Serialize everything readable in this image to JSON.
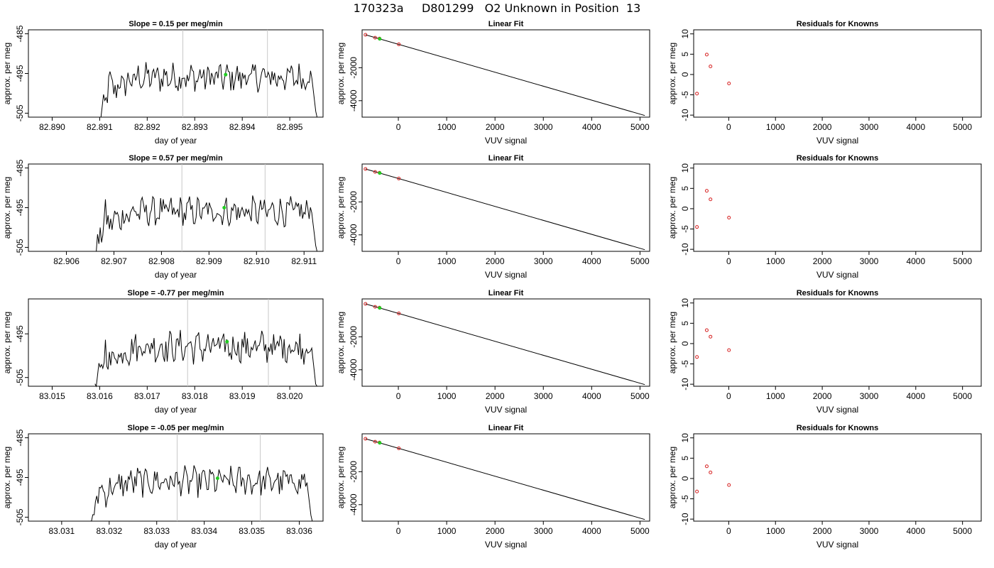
{
  "figure_title": "170323a     D801299   O2 Unknown in Position  13",
  "chart_data": [
    {
      "type": "line",
      "title": "Slope =  0.15  per meg/min",
      "xlabel": "day of year",
      "ylabel": "approx. per meg",
      "xlim": [
        82.8895,
        82.8957
      ],
      "ylim": [
        -506,
        -484
      ],
      "xticks": [
        "82.890",
        "82.891",
        "82.892",
        "82.893",
        "82.894",
        "82.895"
      ],
      "yticks": [
        "-485",
        "-495",
        "-505"
      ],
      "trace": {
        "x_start": 82.891,
        "x_end": 82.8956
      },
      "vlines": [
        82.89275,
        82.89453
      ],
      "green_marker": {
        "x": 82.89365,
        "y": -495.3
      }
    },
    {
      "type": "line",
      "title": "Linear Fit",
      "xlabel": "VUV signal",
      "ylabel": "approx. per meg",
      "xlim": [
        -750,
        5200
      ],
      "ylim": [
        -5000,
        300
      ],
      "xticks": [
        "0",
        "1000",
        "2000",
        "3000",
        "4000",
        "5000"
      ],
      "yticks": [
        "-2000",
        "-4000"
      ],
      "fit_line": {
        "x": [
          -680,
          5100
        ],
        "y": [
          0,
          -4900
        ]
      },
      "points_red": [
        {
          "x": -680,
          "y": 0
        },
        {
          "x": -480,
          "y": -180
        },
        {
          "x": -390,
          "y": -230
        },
        {
          "x": 10,
          "y": -580
        }
      ],
      "point_green": {
        "x": -385,
        "y": -250
      }
    },
    {
      "type": "scatter",
      "title": "Residuals for Knowns",
      "xlabel": "VUV signal",
      "ylabel": "approx. per meg",
      "xlim": [
        -750,
        5400
      ],
      "ylim": [
        -10.5,
        11
      ],
      "xticks": [
        "0",
        "1000",
        "2000",
        "3000",
        "4000",
        "5000"
      ],
      "yticks": [
        "10",
        "5",
        "0",
        "-5",
        "-10"
      ],
      "points": [
        {
          "x": -680,
          "y": -4.7
        },
        {
          "x": -470,
          "y": 4.9
        },
        {
          "x": -390,
          "y": 2.0
        },
        {
          "x": 5,
          "y": -2.2
        }
      ]
    },
    {
      "type": "line",
      "title": "Slope =  0.57  per meg/min",
      "xlabel": "day of year",
      "ylabel": "approx. per meg",
      "xlim": [
        82.9052,
        82.9114
      ],
      "ylim": [
        -506,
        -484
      ],
      "xticks": [
        "82.906",
        "82.907",
        "82.908",
        "82.909",
        "82.910",
        "82.911"
      ],
      "yticks": [
        "-485",
        "-495",
        "-505"
      ],
      "trace": {
        "x_start": 82.9066,
        "x_end": 82.9113
      },
      "vlines": [
        82.90843,
        82.91018
      ],
      "green_marker": {
        "x": 82.90932,
        "y": -495.0
      }
    },
    {
      "type": "line",
      "title": "Linear Fit",
      "xlabel": "VUV signal",
      "ylabel": "approx. per meg",
      "xlim": [
        -750,
        5200
      ],
      "ylim": [
        -5000,
        300
      ],
      "xticks": [
        "0",
        "1000",
        "2000",
        "3000",
        "4000",
        "5000"
      ],
      "yticks": [
        "-2000",
        "-4000"
      ],
      "fit_line": {
        "x": [
          -680,
          5100
        ],
        "y": [
          0,
          -4900
        ]
      },
      "points_red": [
        {
          "x": -680,
          "y": 0
        },
        {
          "x": -480,
          "y": -180
        },
        {
          "x": -390,
          "y": -230
        },
        {
          "x": 10,
          "y": -580
        }
      ],
      "point_green": {
        "x": -385,
        "y": -250
      }
    },
    {
      "type": "scatter",
      "title": "Residuals for Knowns",
      "xlabel": "VUV signal",
      "ylabel": "approx. per meg",
      "xlim": [
        -750,
        5400
      ],
      "ylim": [
        -10.5,
        11
      ],
      "xticks": [
        "0",
        "1000",
        "2000",
        "3000",
        "4000",
        "5000"
      ],
      "yticks": [
        "10",
        "5",
        "0",
        "-5",
        "-10"
      ],
      "points": [
        {
          "x": -680,
          "y": -4.5
        },
        {
          "x": -470,
          "y": 4.4
        },
        {
          "x": -390,
          "y": 2.3
        },
        {
          "x": 5,
          "y": -2.2
        }
      ]
    },
    {
      "type": "line",
      "title": "Slope =  -0.77  per meg/min",
      "xlabel": "day of year",
      "ylabel": "approx. per meg",
      "xlim": [
        83.0145,
        83.0207
      ],
      "ylim": [
        -507,
        -487
      ],
      "xticks": [
        "83.015",
        "83.016",
        "83.017",
        "83.018",
        "83.019",
        "83.020"
      ],
      "yticks": [
        "-495",
        "-505"
      ],
      "trace": {
        "x_start": 83.0159,
        "x_end": 83.0206
      },
      "vlines": [
        83.01785,
        83.01955
      ],
      "green_marker": {
        "x": 83.01868,
        "y": -496.8
      }
    },
    {
      "type": "line",
      "title": "Linear Fit",
      "xlabel": "VUV signal",
      "ylabel": "approx. per meg",
      "xlim": [
        -750,
        5200
      ],
      "ylim": [
        -5000,
        300
      ],
      "xticks": [
        "0",
        "1000",
        "2000",
        "3000",
        "4000",
        "5000"
      ],
      "yticks": [
        "-2000",
        "-4000"
      ],
      "fit_line": {
        "x": [
          -680,
          5100
        ],
        "y": [
          0,
          -4900
        ]
      },
      "points_red": [
        {
          "x": -680,
          "y": 0
        },
        {
          "x": -480,
          "y": -180
        },
        {
          "x": -390,
          "y": -230
        },
        {
          "x": 10,
          "y": -580
        }
      ],
      "point_green": {
        "x": -385,
        "y": -250
      }
    },
    {
      "type": "scatter",
      "title": "Residuals for Knowns",
      "xlabel": "VUV signal",
      "ylabel": "approx. per meg",
      "xlim": [
        -750,
        5400
      ],
      "ylim": [
        -10.5,
        11
      ],
      "xticks": [
        "0",
        "1000",
        "2000",
        "3000",
        "4000",
        "5000"
      ],
      "yticks": [
        "10",
        "5",
        "0",
        "-5",
        "-10"
      ],
      "points": [
        {
          "x": -680,
          "y": -3.3
        },
        {
          "x": -470,
          "y": 3.3
        },
        {
          "x": -390,
          "y": 1.7
        },
        {
          "x": 5,
          "y": -1.6
        }
      ]
    },
    {
      "type": "line",
      "title": "Slope =  -0.05  per meg/min",
      "xlabel": "day of year",
      "ylabel": "approx. per meg",
      "xlim": [
        83.0303,
        83.0365
      ],
      "ylim": [
        -506,
        -484
      ],
      "xticks": [
        "83.031",
        "83.032",
        "83.033",
        "83.034",
        "83.035",
        "83.036"
      ],
      "yticks": [
        "-485",
        "-495",
        "-505"
      ],
      "trace": {
        "x_start": 83.0316,
        "x_end": 83.0363
      },
      "vlines": [
        83.03343,
        83.03518
      ],
      "green_marker": {
        "x": 83.03428,
        "y": -495.2
      }
    },
    {
      "type": "line",
      "title": "Linear Fit",
      "xlabel": "VUV signal",
      "ylabel": "approx. per meg",
      "xlim": [
        -750,
        5200
      ],
      "ylim": [
        -5000,
        300
      ],
      "xticks": [
        "0",
        "1000",
        "2000",
        "3000",
        "4000",
        "5000"
      ],
      "yticks": [
        "-2000",
        "-4000"
      ],
      "fit_line": {
        "x": [
          -680,
          5100
        ],
        "y": [
          0,
          -4900
        ]
      },
      "points_red": [
        {
          "x": -680,
          "y": 0
        },
        {
          "x": -480,
          "y": -180
        },
        {
          "x": -390,
          "y": -230
        },
        {
          "x": 10,
          "y": -580
        }
      ],
      "point_green": {
        "x": -385,
        "y": -250
      }
    },
    {
      "type": "scatter",
      "title": "Residuals for Knowns",
      "xlabel": "VUV signal",
      "ylabel": "approx. per meg",
      "xlim": [
        -750,
        5400
      ],
      "ylim": [
        -10.5,
        11
      ],
      "xticks": [
        "0",
        "1000",
        "2000",
        "3000",
        "4000",
        "5000"
      ],
      "yticks": [
        "10",
        "5",
        "0",
        "-5",
        "-10"
      ],
      "points": [
        {
          "x": -680,
          "y": -3.2
        },
        {
          "x": -470,
          "y": 3.0
        },
        {
          "x": -390,
          "y": 1.5
        },
        {
          "x": 5,
          "y": -1.6
        }
      ]
    }
  ]
}
